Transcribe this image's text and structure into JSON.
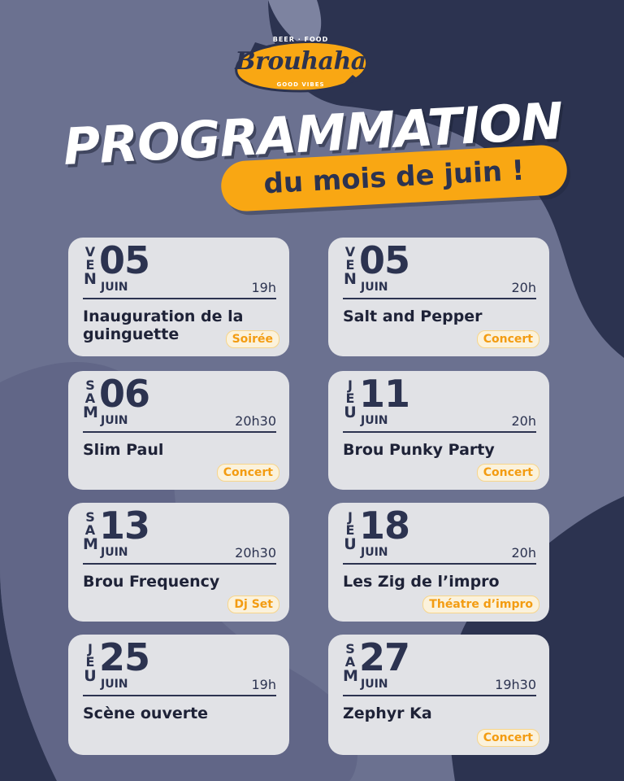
{
  "logo": {
    "name": "Brouhaha",
    "top_text": "BEER · FOOD",
    "bottom_text": "GOOD VIBES"
  },
  "title": "PROGRAMMATION",
  "subtitle": "du mois de juin !",
  "colors": {
    "background": "#2c3350",
    "accent": "#f9a713",
    "card": "#e1e2e6",
    "text": "#2c3350"
  },
  "events": [
    {
      "day_letters": [
        "V",
        "E",
        "N"
      ],
      "date": "05",
      "month": "JUIN",
      "time": "19h",
      "title": "Inauguration de la guinguette",
      "tag": "Soirée"
    },
    {
      "day_letters": [
        "V",
        "E",
        "N"
      ],
      "date": "05",
      "month": "JUIN",
      "time": "20h",
      "title": "Salt and Pepper",
      "tag": "Concert"
    },
    {
      "day_letters": [
        "S",
        "A",
        "M"
      ],
      "date": "06",
      "month": "JUIN",
      "time": "20h30",
      "title": "Slim Paul",
      "tag": "Concert"
    },
    {
      "day_letters": [
        "J",
        "E",
        "U"
      ],
      "date": "11",
      "month": "JUIN",
      "time": "20h",
      "title": "Brou Punky Party",
      "tag": "Concert"
    },
    {
      "day_letters": [
        "S",
        "A",
        "M"
      ],
      "date": "13",
      "month": "JUIN",
      "time": "20h30",
      "title": "Brou Frequency",
      "tag": "Dj Set"
    },
    {
      "day_letters": [
        "J",
        "E",
        "U"
      ],
      "date": "18",
      "month": "JUIN",
      "time": "20h",
      "title": "Les Zig de l’impro",
      "tag": "Théatre d’impro"
    },
    {
      "day_letters": [
        "J",
        "E",
        "U"
      ],
      "date": "25",
      "month": "JUIN",
      "time": "19h",
      "title": "Scène ouverte",
      "tag": ""
    },
    {
      "day_letters": [
        "S",
        "A",
        "M"
      ],
      "date": "27",
      "month": "JUIN",
      "time": "19h30",
      "title": "Zephyr Ka",
      "tag": "Concert"
    }
  ]
}
